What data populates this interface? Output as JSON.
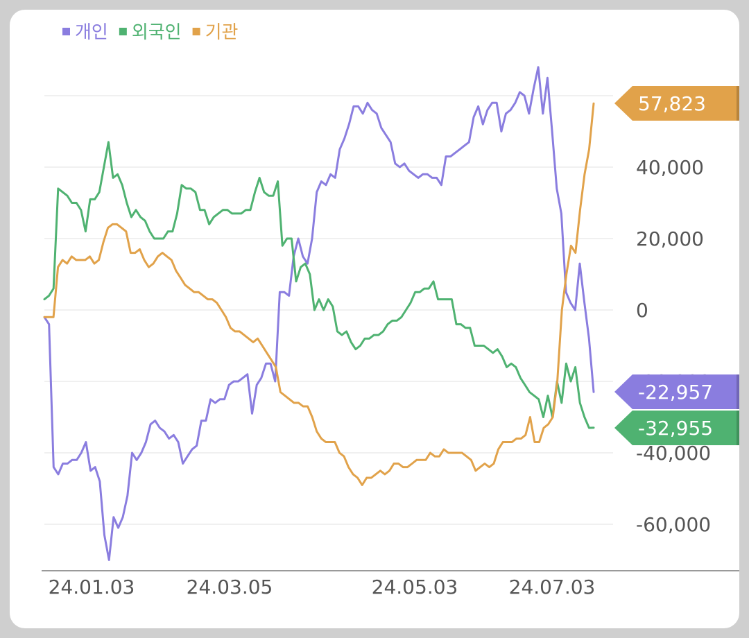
{
  "chart_data": {
    "type": "line",
    "title": "",
    "xlabel": "",
    "ylabel": "",
    "ylim": [
      -72000,
      70000
    ],
    "x_ticks": [
      "24.01.03",
      "24.03.05",
      "24.05.03",
      "24.07.03"
    ],
    "y_ticks": [
      {
        "value": 40000,
        "label": "40,000"
      },
      {
        "value": 20000,
        "label": "20,000"
      },
      {
        "value": 0,
        "label": "0"
      },
      {
        "value": -20000,
        "label": "-20,000"
      },
      {
        "value": -40000,
        "label": "-40,000"
      },
      {
        "value": -60000,
        "label": "-60,000"
      }
    ],
    "grid": true,
    "legend_position": "top-left",
    "series": [
      {
        "name": "개인",
        "color": "#8a7ddf",
        "last_value_label": "-22,957",
        "values": [
          -2000,
          -4000,
          -44000,
          -46000,
          -43000,
          -43000,
          -42000,
          -42000,
          -40000,
          -37000,
          -45000,
          -44000,
          -48000,
          -63000,
          -70000,
          -58000,
          -61000,
          -58000,
          -52000,
          -40000,
          -42000,
          -40000,
          -37000,
          -32000,
          -31000,
          -33000,
          -34000,
          -36000,
          -35000,
          -37000,
          -43000,
          -41000,
          -39000,
          -38000,
          -31000,
          -31000,
          -25000,
          -26000,
          -25000,
          -25000,
          -21000,
          -20000,
          -20000,
          -19000,
          -18000,
          -29000,
          -21000,
          -19000,
          -15000,
          -15000,
          -20000,
          5000,
          5000,
          4000,
          15000,
          20000,
          15000,
          13000,
          20000,
          33000,
          36000,
          35000,
          38000,
          37000,
          45000,
          48000,
          52000,
          57000,
          57000,
          55000,
          58000,
          56000,
          55000,
          51000,
          49000,
          47000,
          41000,
          40000,
          41000,
          39000,
          38000,
          37000,
          38000,
          38000,
          37000,
          37000,
          35000,
          43000,
          43000,
          44000,
          45000,
          46000,
          47000,
          54000,
          57000,
          52000,
          56000,
          58000,
          58000,
          50000,
          55000,
          56000,
          58000,
          61000,
          60000,
          55000,
          62000,
          68000,
          55000,
          65000,
          50000,
          34000,
          27000,
          5000,
          2000,
          0,
          13000,
          2000,
          -8000,
          -22957
        ]
      },
      {
        "name": "외국인",
        "color": "#4fb271",
        "last_value_label": "-32,955",
        "values": [
          3000,
          4000,
          6000,
          34000,
          33000,
          32000,
          30000,
          30000,
          28000,
          22000,
          31000,
          31000,
          33000,
          40000,
          47000,
          37000,
          38000,
          35000,
          30000,
          26000,
          28000,
          26000,
          25000,
          22000,
          20000,
          20000,
          20000,
          22000,
          22000,
          27000,
          35000,
          34000,
          34000,
          33000,
          28000,
          28000,
          24000,
          26000,
          27000,
          28000,
          28000,
          27000,
          27000,
          27000,
          28000,
          28000,
          33000,
          37000,
          33000,
          32000,
          32000,
          36000,
          18000,
          20000,
          20000,
          8000,
          12000,
          13000,
          10000,
          0,
          3000,
          0,
          3000,
          1000,
          -6000,
          -7000,
          -6000,
          -9000,
          -11000,
          -10000,
          -8000,
          -8000,
          -7000,
          -7000,
          -6000,
          -4000,
          -3000,
          -3000,
          -2000,
          0,
          2000,
          5000,
          5000,
          6000,
          6000,
          8000,
          3000,
          3000,
          3000,
          3000,
          -4000,
          -4000,
          -5000,
          -5000,
          -10000,
          -10000,
          -10000,
          -11000,
          -12000,
          -11000,
          -13000,
          -16000,
          -15000,
          -16000,
          -19000,
          -21000,
          -23000,
          -24000,
          -25000,
          -30000,
          -24000,
          -30000,
          -20000,
          -26000,
          -15000,
          -20000,
          -16000,
          -26000,
          -30000,
          -33000,
          -32955
        ]
      },
      {
        "name": "기관",
        "color": "#e1a24a",
        "last_value_label": "57,823",
        "values": [
          -2000,
          -2000,
          -2000,
          12000,
          14000,
          13000,
          15000,
          14000,
          14000,
          14000,
          15000,
          13000,
          14000,
          19000,
          23000,
          24000,
          24000,
          23000,
          22000,
          16000,
          16000,
          17000,
          14000,
          12000,
          13000,
          15000,
          16000,
          15000,
          14000,
          11000,
          9000,
          7000,
          6000,
          5000,
          5000,
          4000,
          3000,
          3000,
          2000,
          0,
          -2000,
          -5000,
          -6000,
          -6000,
          -7000,
          -8000,
          -9000,
          -8000,
          -10000,
          -12000,
          -14000,
          -16000,
          -23000,
          -24000,
          -25000,
          -26000,
          -26000,
          -27000,
          -27000,
          -30000,
          -34000,
          -36000,
          -37000,
          -37000,
          -37000,
          -40000,
          -41000,
          -44000,
          -46000,
          -47000,
          -49000,
          -47000,
          -47000,
          -46000,
          -45000,
          -46000,
          -45000,
          -43000,
          -43000,
          -44000,
          -44000,
          -43000,
          -42000,
          -42000,
          -42000,
          -40000,
          -41000,
          -41000,
          -39000,
          -40000,
          -40000,
          -40000,
          -40000,
          -41000,
          -42000,
          -45000,
          -44000,
          -43000,
          -44000,
          -43000,
          -39000,
          -37000,
          -37000,
          -37000,
          -36000,
          -36000,
          -35000,
          -30000,
          -37000,
          -37000,
          -33000,
          -32000,
          -30000,
          -20000,
          0,
          10000,
          18000,
          16000,
          28000,
          38000,
          45000,
          57823
        ]
      }
    ]
  }
}
